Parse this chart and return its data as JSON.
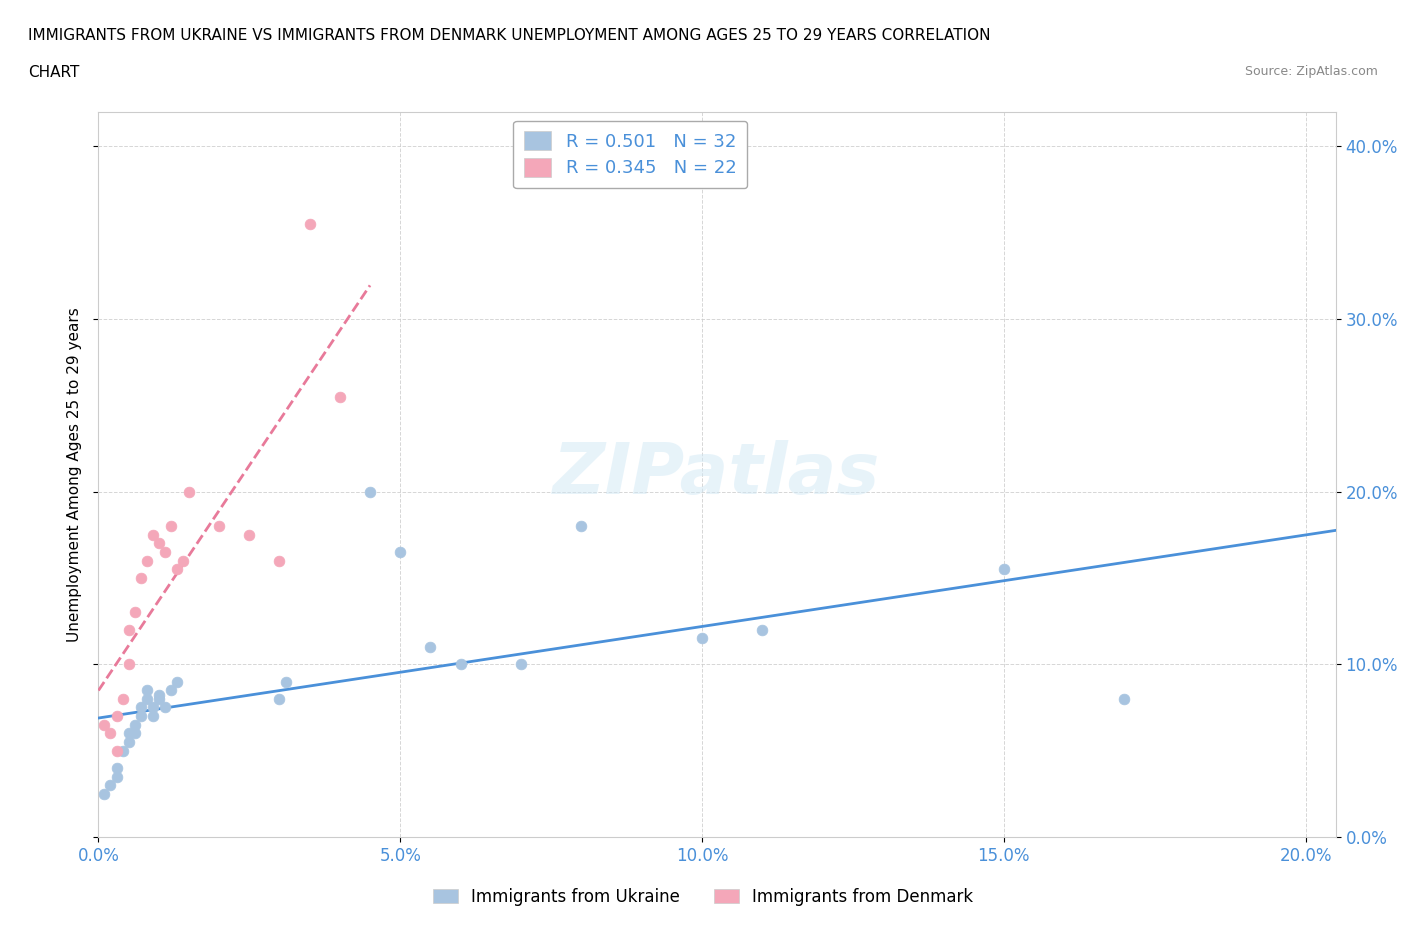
{
  "title_line1": "IMMIGRANTS FROM UKRAINE VS IMMIGRANTS FROM DENMARK UNEMPLOYMENT AMONG AGES 25 TO 29 YEARS CORRELATION",
  "title_line2": "CHART",
  "source": "Source: ZipAtlas.com",
  "ylabel": "Unemployment Among Ages 25 to 29 years",
  "xlabel": "",
  "ukraine_color": "#a8c4e0",
  "denmark_color": "#f4a7b9",
  "ukraine_R": 0.501,
  "ukraine_N": 32,
  "denmark_R": 0.345,
  "denmark_N": 22,
  "ukraine_scatter_x": [
    0.001,
    0.002,
    0.003,
    0.003,
    0.004,
    0.005,
    0.005,
    0.006,
    0.006,
    0.007,
    0.007,
    0.008,
    0.008,
    0.009,
    0.009,
    0.01,
    0.01,
    0.011,
    0.012,
    0.013,
    0.03,
    0.031,
    0.045,
    0.05,
    0.055,
    0.06,
    0.07,
    0.08,
    0.1,
    0.11,
    0.15,
    0.17
  ],
  "ukraine_scatter_y": [
    0.025,
    0.03,
    0.035,
    0.04,
    0.05,
    0.055,
    0.06,
    0.065,
    0.06,
    0.07,
    0.075,
    0.08,
    0.085,
    0.07,
    0.075,
    0.08,
    0.082,
    0.075,
    0.085,
    0.09,
    0.08,
    0.09,
    0.2,
    0.165,
    0.11,
    0.1,
    0.1,
    0.18,
    0.115,
    0.12,
    0.155,
    0.08
  ],
  "denmark_scatter_x": [
    0.001,
    0.002,
    0.003,
    0.003,
    0.004,
    0.005,
    0.005,
    0.006,
    0.007,
    0.008,
    0.009,
    0.01,
    0.011,
    0.012,
    0.013,
    0.014,
    0.015,
    0.02,
    0.025,
    0.03,
    0.035,
    0.04
  ],
  "denmark_scatter_y": [
    0.065,
    0.06,
    0.05,
    0.07,
    0.08,
    0.1,
    0.12,
    0.13,
    0.15,
    0.16,
    0.175,
    0.17,
    0.165,
    0.18,
    0.155,
    0.16,
    0.2,
    0.18,
    0.175,
    0.16,
    0.355,
    0.255
  ],
  "xlim": [
    0.0,
    0.205
  ],
  "ylim": [
    0.0,
    0.42
  ],
  "xticks": [
    0.0,
    0.05,
    0.1,
    0.15,
    0.2
  ],
  "yticks": [
    0.0,
    0.1,
    0.2,
    0.3,
    0.4
  ],
  "watermark": "ZIPatlas",
  "ukraine_line_color": "#4a90d9",
  "denmark_line_color": "#e87a9a",
  "grid_color": "#cccccc",
  "background_color": "#ffffff"
}
